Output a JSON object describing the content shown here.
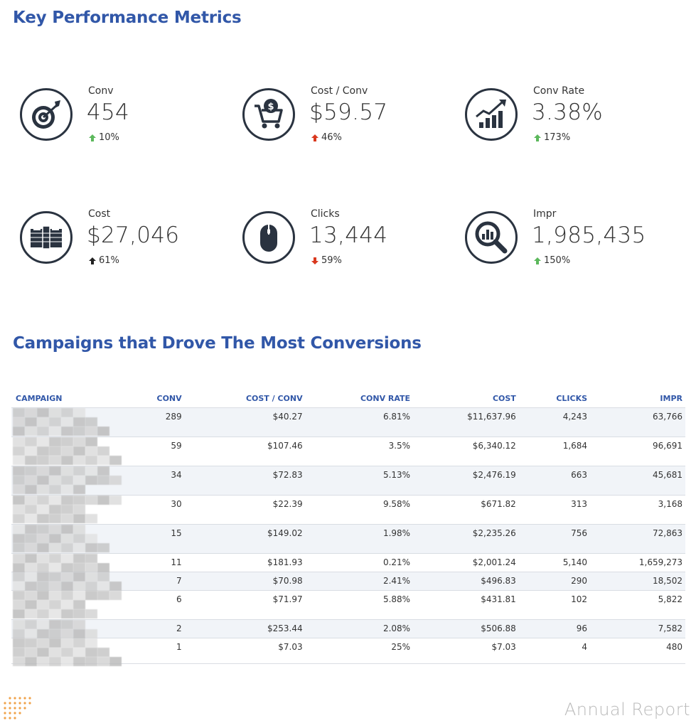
{
  "kpi_section": {
    "title": "Key Performance Metrics",
    "metrics": [
      {
        "label": "Conv",
        "value": "454",
        "change": "10%",
        "direction": "up",
        "color": "#5cb85c",
        "icon": "target-icon"
      },
      {
        "label": "Cost / Conv",
        "value": "$59.57",
        "change": "46%",
        "direction": "up",
        "color": "#d9381e",
        "icon": "dollar-cart-icon"
      },
      {
        "label": "Conv Rate",
        "value": "3.38%",
        "change": "173%",
        "direction": "up",
        "color": "#5cb85c",
        "icon": "growth-chart-icon"
      },
      {
        "label": "Cost",
        "value": "$27,046",
        "change": "61%",
        "direction": "up",
        "color": "#222222",
        "icon": "cash-stack-icon"
      },
      {
        "label": "Clicks",
        "value": "13,444",
        "change": "59%",
        "direction": "down",
        "color": "#d9381e",
        "icon": "mouse-icon"
      },
      {
        "label": "Impr",
        "value": "1,985,435",
        "change": "150%",
        "direction": "up",
        "color": "#5cb85c",
        "icon": "magnifier-chart-icon"
      }
    ]
  },
  "campaigns_section": {
    "title": "Campaigns that Drove The Most Conversions",
    "columns": [
      "CAMPAIGN",
      "CONV",
      "COST / CONV",
      "CONV RATE",
      "COST",
      "CLICKS",
      "IMPR"
    ],
    "rows": [
      {
        "conv": "289",
        "cost_conv": "$40.27",
        "conv_rate": "6.81%",
        "cost": "$11,637.96",
        "clicks": "4,243",
        "impr": "63,766"
      },
      {
        "conv": "59",
        "cost_conv": "$107.46",
        "conv_rate": "3.5%",
        "cost": "$6,340.12",
        "clicks": "1,684",
        "impr": "96,691"
      },
      {
        "conv": "34",
        "cost_conv": "$72.83",
        "conv_rate": "5.13%",
        "cost": "$2,476.19",
        "clicks": "663",
        "impr": "45,681"
      },
      {
        "conv": "30",
        "cost_conv": "$22.39",
        "conv_rate": "9.58%",
        "cost": "$671.82",
        "clicks": "313",
        "impr": "3,168"
      },
      {
        "conv": "15",
        "cost_conv": "$149.02",
        "conv_rate": "1.98%",
        "cost": "$2,235.26",
        "clicks": "756",
        "impr": "72,863"
      },
      {
        "conv": "11",
        "cost_conv": "$181.93",
        "conv_rate": "0.21%",
        "cost": "$2,001.24",
        "clicks": "5,140",
        "impr": "1,659,273"
      },
      {
        "conv": "7",
        "cost_conv": "$70.98",
        "conv_rate": "2.41%",
        "cost": "$496.83",
        "clicks": "290",
        "impr": "18,502"
      },
      {
        "conv": "6",
        "cost_conv": "$71.97",
        "conv_rate": "5.88%",
        "cost": "$431.81",
        "clicks": "102",
        "impr": "5,822"
      },
      {
        "conv": "2",
        "cost_conv": "$253.44",
        "conv_rate": "2.08%",
        "cost": "$506.88",
        "clicks": "96",
        "impr": "7,582"
      },
      {
        "conv": "1",
        "cost_conv": "$7.03",
        "conv_rate": "25%",
        "cost": "$7.03",
        "clicks": "4",
        "impr": "480"
      }
    ]
  },
  "footer": {
    "label": "Annual Report",
    "dots_color": "#f0a24a"
  }
}
